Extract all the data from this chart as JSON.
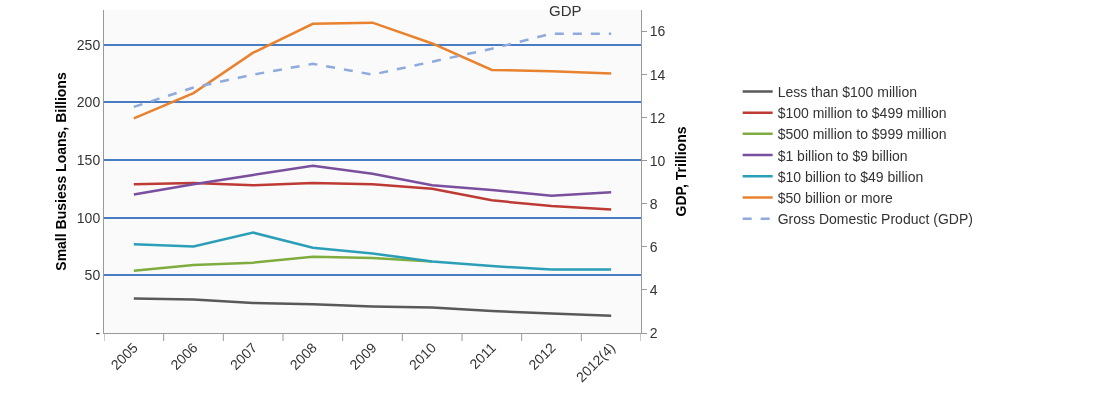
{
  "chart_data": {
    "type": "line",
    "ylabel": "Small Busiess Loans, Billions",
    "y2label": "GDP, Trillions",
    "categories": [
      "2005",
      "2006",
      "2007",
      "2008",
      "2009",
      "2010",
      "2011",
      "2012",
      "2012(4)"
    ],
    "series": [
      {
        "name": "Less than $100 million",
        "color": "#595959",
        "values": [
          30,
          29,
          26,
          25,
          23,
          22,
          19,
          17,
          15
        ]
      },
      {
        "name": "$100 million to $499 million",
        "color": "#be3a34",
        "values": [
          129,
          130,
          128,
          130,
          129,
          125,
          115,
          110,
          107
        ]
      },
      {
        "name": "$500 million to $999 million",
        "color": "#7fac3f",
        "values": [
          54,
          59,
          61,
          66,
          65,
          62,
          null,
          null,
          null
        ]
      },
      {
        "name": "$1 billion to $9 billion",
        "color": "#7a4f9e",
        "values": [
          120,
          129,
          137,
          145,
          138,
          128,
          124,
          119,
          122
        ]
      },
      {
        "name": "$10 billion to $49 billion",
        "color": "#2c9fb8",
        "values": [
          77,
          75,
          87,
          74,
          69,
          62,
          58,
          55,
          55
        ]
      },
      {
        "name": "$50 billion or more",
        "color": "#e8822e",
        "values": [
          186,
          208,
          243,
          268,
          269,
          251,
          228,
          227,
          225
        ]
      },
      {
        "name": "Gross Domestic Product (GDP)",
        "color": "#8faadc",
        "axis": "y2",
        "line_style": "dashed",
        "values": [
          12.5,
          13.4,
          14.0,
          14.5,
          14.0,
          14.6,
          15.2,
          15.9,
          15.9
        ]
      }
    ],
    "ylim": [
      0,
      280
    ],
    "yticks": [
      {
        "value": 0,
        "label": "-"
      },
      50,
      100,
      150,
      200,
      250
    ],
    "y2lim": [
      2,
      17
    ],
    "y2ticks": [
      2,
      4,
      6,
      8,
      10,
      12,
      14,
      16
    ],
    "annotations": [
      "GDP"
    ],
    "grid": "y",
    "legend": "right",
    "line_style": "solid",
    "marker": "none"
  }
}
